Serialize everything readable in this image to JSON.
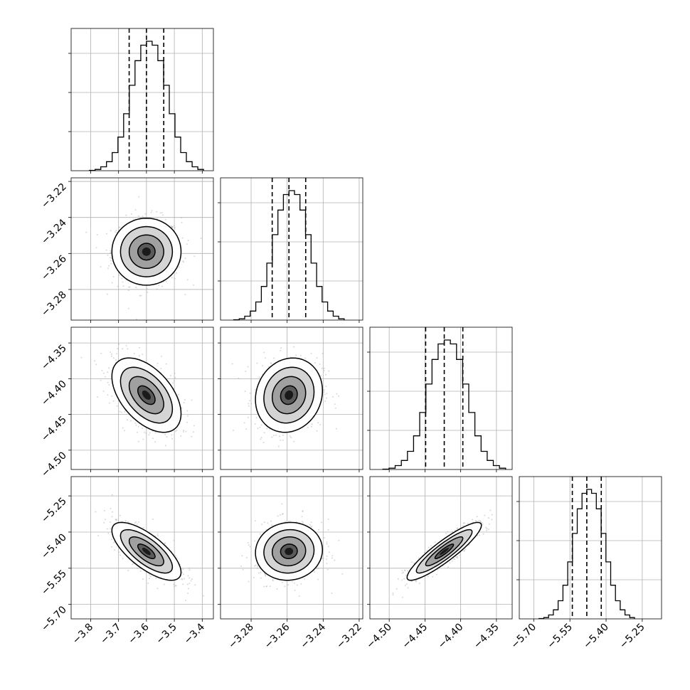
{
  "chart_data": {
    "type": "corner",
    "grid": true,
    "quantiles": [
      0.16,
      0.5,
      0.84
    ],
    "params": [
      {
        "ticks": [
          -3.8,
          -3.7,
          -3.6,
          -3.5,
          -3.4
        ],
        "tick_labels": [
          "−3.8",
          "−3.7",
          "−3.6",
          "−3.5",
          "−3.4"
        ],
        "range": [
          -3.87,
          -3.36
        ],
        "mean": -3.6,
        "sd": 0.062,
        "q": [
          -3.662,
          -3.6,
          -3.538
        ]
      },
      {
        "ticks": [
          -3.28,
          -3.26,
          -3.24,
          -3.22
        ],
        "tick_labels": [
          "−3.28",
          "−3.26",
          "−3.24",
          "−3.22"
        ],
        "range": [
          -3.297,
          -3.218
        ],
        "mean": -3.259,
        "sd": 0.0093,
        "q": [
          -3.2683,
          -3.259,
          -3.2497
        ]
      },
      {
        "ticks": [
          -4.5,
          -4.45,
          -4.4,
          -4.35
        ],
        "tick_labels": [
          "−4.50",
          "−4.45",
          "−4.40",
          "−4.35"
        ],
        "range": [
          -4.527,
          -4.328
        ],
        "mean": -4.423,
        "sd": 0.026,
        "q": [
          -4.449,
          -4.423,
          -4.397
        ]
      },
      {
        "ticks": [
          -5.7,
          -5.55,
          -5.4,
          -5.25
        ],
        "tick_labels": [
          "−5.70",
          "−5.55",
          "−5.40",
          "−5.25"
        ],
        "range": [
          -5.76,
          -5.17
        ],
        "mean": -5.48,
        "sd": 0.06,
        "q": [
          -5.54,
          -5.48,
          -5.42
        ]
      }
    ],
    "correlations": {
      "1-0": 0.0,
      "2-0": -0.5,
      "2-1": 0.12,
      "3-0": -0.72,
      "3-1": 0.05,
      "3-2": 0.9
    },
    "hist_weights": [
      0.003,
      0.01,
      0.03,
      0.07,
      0.14,
      0.26,
      0.44,
      0.66,
      0.85,
      0.97,
      1.0,
      0.97,
      0.85,
      0.66,
      0.44,
      0.26,
      0.14,
      0.07,
      0.03,
      0.01
    ],
    "contour_sigmas": [
      0.5,
      1.0,
      1.5,
      2.0
    ],
    "colors": {
      "axes": "#000000",
      "grid": "#b0b0b0",
      "points": "#a8a8a8",
      "density": "#000000"
    }
  }
}
